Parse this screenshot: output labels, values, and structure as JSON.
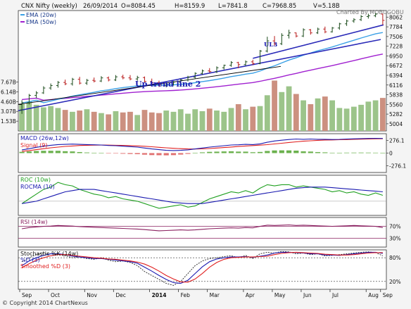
{
  "header": {
    "title": "CNX Nifty (weekly)",
    "date": "26/09/2014",
    "open": "O=8084.45",
    "high": "H=8159.9",
    "low": "L=7841.8",
    "close": "C=7968.85",
    "volume": "V=5.18B",
    "credit_top": "Charted By MOBUGOBU",
    "copyright": "© Copyright 2014 ChartNexus"
  },
  "colors": {
    "ema20": "#3aa0e6",
    "ema50": "#a020d0",
    "trend": "#2a2ab8",
    "candle_up": "#1a4a1a",
    "candle_down": "#b81818",
    "vol_up": "#9cc48a",
    "vol_down": "#cc9080",
    "macd": "#1a1ab0",
    "signal": "#e02020",
    "roc": "#20a020",
    "rocma": "#1a1ab0",
    "rsi": "#8a2060",
    "stoch_k": "#1a1ab0",
    "stoch_slow": "#e02020"
  },
  "chart_data": [
    {
      "panel": "price",
      "type": "candlestick",
      "legend": [
        "EMA (20w)",
        "EMA (50w)"
      ],
      "y_ticks": [
        "8062",
        "7784",
        "7506",
        "7228",
        "6950",
        "6672",
        "6394",
        "6116",
        "5838",
        "5560",
        "5282",
        "5004"
      ],
      "ylim": [
        4800,
        8250
      ],
      "x_ticks": [
        "Sep",
        "Oct",
        "Nov",
        "Dec",
        "2014",
        "Feb",
        "Mar",
        "Apr",
        "May",
        "Jun",
        "Jul",
        "Aug",
        "Sep"
      ],
      "annotations": [
        "Up trend line 2",
        "UL3"
      ],
      "candles": [
        [
          5400,
          5680,
          5290,
          5610
        ],
        [
          5610,
          5860,
          5560,
          5820
        ],
        [
          5820,
          5940,
          5740,
          5890
        ],
        [
          5890,
          6080,
          5860,
          6030
        ],
        [
          6030,
          6160,
          5980,
          6100
        ],
        [
          6100,
          6230,
          6040,
          6190
        ],
        [
          6190,
          6270,
          6110,
          6150
        ],
        [
          6150,
          6320,
          6100,
          6280
        ],
        [
          6280,
          6350,
          6130,
          6170
        ],
        [
          6170,
          6290,
          6120,
          6250
        ],
        [
          6250,
          6330,
          6190,
          6230
        ],
        [
          6230,
          6370,
          6200,
          6320
        ],
        [
          6320,
          6360,
          6220,
          6260
        ],
        [
          6260,
          6400,
          6230,
          6350
        ],
        [
          6350,
          6410,
          6280,
          6320
        ],
        [
          6320,
          6400,
          6250,
          6290
        ],
        [
          6290,
          6380,
          6240,
          6330
        ],
        [
          6330,
          6360,
          6190,
          6220
        ],
        [
          6220,
          6300,
          6140,
          6180
        ],
        [
          6180,
          6240,
          6060,
          6110
        ],
        [
          6110,
          6200,
          6050,
          6140
        ],
        [
          6140,
          6230,
          6100,
          6200
        ],
        [
          6200,
          6290,
          6150,
          6260
        ],
        [
          6260,
          6380,
          6220,
          6340
        ],
        [
          6340,
          6480,
          6300,
          6450
        ],
        [
          6450,
          6560,
          6410,
          6520
        ],
        [
          6520,
          6600,
          6470,
          6500
        ],
        [
          6500,
          6650,
          6460,
          6610
        ],
        [
          6610,
          6700,
          6560,
          6680
        ],
        [
          6680,
          6800,
          6640,
          6760
        ],
        [
          6760,
          6780,
          6600,
          6700
        ],
        [
          6700,
          6820,
          6670,
          6780
        ],
        [
          6780,
          6840,
          6690,
          6730
        ],
        [
          6730,
          7120,
          6710,
          7090
        ],
        [
          7090,
          7500,
          7050,
          7380
        ],
        [
          7380,
          7520,
          7250,
          7300
        ],
        [
          7300,
          7600,
          7260,
          7540
        ],
        [
          7540,
          7700,
          7450,
          7610
        ],
        [
          7610,
          7620,
          7480,
          7520
        ],
        [
          7520,
          7740,
          7490,
          7700
        ],
        [
          7700,
          7720,
          7560,
          7610
        ],
        [
          7610,
          7760,
          7580,
          7720
        ],
        [
          7720,
          7790,
          7600,
          7640
        ],
        [
          7640,
          7780,
          7620,
          7750
        ],
        [
          7750,
          7900,
          7700,
          7870
        ],
        [
          7870,
          7990,
          7810,
          7950
        ],
        [
          7950,
          8030,
          7900,
          7990
        ],
        [
          7990,
          8120,
          7950,
          8080
        ],
        [
          8080,
          8160,
          8020,
          8100
        ],
        [
          8100,
          8180,
          8060,
          8150
        ],
        [
          8150,
          8160,
          7840,
          7969
        ]
      ],
      "volume": {
        "y_ticks": [
          "7.67B",
          "6.14B",
          "4.60B",
          "3.07B",
          "1.53B"
        ],
        "ylim": [
          0,
          9.5
        ],
        "values": [
          4.2,
          4.6,
          4.1,
          3.7,
          3.9,
          3.6,
          3.3,
          3.0,
          3.2,
          3.4,
          3.0,
          2.8,
          2.6,
          3.1,
          2.9,
          3.0,
          2.5,
          3.3,
          2.9,
          2.8,
          3.2,
          3.0,
          3.4,
          2.7,
          3.4,
          3.1,
          3.5,
          3.2,
          3.0,
          3.6,
          4.2,
          3.4,
          3.8,
          3.9,
          5.6,
          7.9,
          6.1,
          7.0,
          5.8,
          4.8,
          4.2,
          5.1,
          5.4,
          4.8,
          3.6,
          3.5,
          3.8,
          4.1,
          4.6,
          4.8,
          5.18
        ]
      }
    },
    {
      "panel": "macd",
      "type": "line",
      "legend": [
        "MACD (26w,12w)",
        "Signal (9)"
      ],
      "y_ticks": [
        "276.1",
        "0",
        "-276.1"
      ],
      "ylim": [
        -420,
        420
      ],
      "series": [
        {
          "name": "MACD (26w,12w)",
          "values": [
            70,
            95,
            125,
            150,
            170,
            185,
            190,
            195,
            190,
            185,
            180,
            175,
            165,
            160,
            150,
            140,
            130,
            110,
            90,
            75,
            60,
            55,
            60,
            70,
            90,
            110,
            130,
            145,
            160,
            175,
            180,
            190,
            185,
            200,
            235,
            262,
            280,
            295,
            305,
            300,
            305,
            300,
            300,
            295,
            298,
            305,
            310,
            315,
            318,
            320,
            318
          ]
        },
        {
          "name": "Signal (9)",
          "values": [
            40,
            55,
            75,
            95,
            115,
            130,
            145,
            155,
            165,
            170,
            172,
            174,
            172,
            170,
            166,
            162,
            156,
            148,
            138,
            126,
            114,
            104,
            96,
            90,
            88,
            92,
            100,
            110,
            120,
            132,
            144,
            155,
            164,
            172,
            184,
            198,
            214,
            230,
            245,
            258,
            268,
            276,
            282,
            286,
            290,
            294,
            298,
            302,
            306,
            310,
            312
          ]
        }
      ]
    },
    {
      "panel": "roc",
      "type": "line",
      "legend": [
        "ROC (10w)",
        "ROCMA (10)"
      ],
      "ylim": [
        -12,
        22
      ],
      "series": [
        {
          "name": "ROC (10w)",
          "values": [
            -2,
            2,
            6,
            10,
            12,
            16,
            14,
            13,
            10,
            8,
            6,
            5,
            3,
            4,
            2,
            1,
            0,
            -2,
            -4,
            -6,
            -5,
            -4,
            -3,
            -5,
            -4,
            -1,
            2,
            4,
            6,
            8,
            7,
            9,
            7,
            11,
            14,
            13,
            14,
            14,
            12,
            13,
            12,
            11,
            10,
            8,
            9,
            7,
            8,
            6,
            5,
            7,
            5
          ]
        },
        {
          "name": "ROCMA (10)",
          "values": [
            -2,
            -1,
            0,
            2,
            4,
            6,
            8,
            9,
            10,
            10,
            10,
            9,
            8,
            7,
            6,
            5,
            4,
            3,
            2,
            1,
            0,
            -1,
            -1.5,
            -2,
            -2,
            -2,
            -1,
            0,
            1,
            2,
            3,
            4,
            5,
            6,
            7,
            8,
            9,
            10,
            11,
            11.5,
            12,
            12,
            12,
            11.5,
            11,
            10.5,
            10,
            9.5,
            9,
            8.5,
            8
          ]
        }
      ]
    },
    {
      "panel": "rsi",
      "type": "line",
      "legend": [
        "RSI (14w)"
      ],
      "y_ticks": [
        "70%",
        "30%"
      ],
      "ylim": [
        0,
        100
      ],
      "series": [
        {
          "name": "RSI (14w)",
          "values": [
            62,
            66,
            68,
            70,
            71,
            73,
            72,
            71,
            69,
            68,
            67,
            66,
            65,
            64,
            63,
            62,
            61,
            59,
            57,
            55,
            56,
            57,
            58,
            57,
            58,
            60,
            62,
            63,
            64,
            65,
            64,
            66,
            65,
            70,
            74,
            73,
            74,
            75,
            73,
            74,
            73,
            72,
            71,
            70,
            71,
            72,
            73,
            72,
            71,
            70,
            66
          ]
        }
      ]
    },
    {
      "panel": "stochastic",
      "type": "line",
      "legend": [
        "Stochastic %K (14w)",
        "%D (3)",
        "Smoothed %D (3)"
      ],
      "y_ticks": [
        "80%",
        "20%"
      ],
      "ylim": [
        0,
        100
      ],
      "series": [
        {
          "name": "Stochastic %K (14w)",
          "values": [
            70,
            80,
            88,
            92,
            90,
            88,
            85,
            80,
            82,
            78,
            76,
            80,
            74,
            70,
            72,
            68,
            60,
            45,
            35,
            25,
            15,
            10,
            20,
            40,
            60,
            72,
            78,
            80,
            83,
            85,
            80,
            86,
            78,
            90,
            94,
            92,
            96,
            95,
            90,
            92,
            88,
            90,
            85,
            86,
            88,
            90,
            92,
            94,
            95,
            93,
            85
          ]
        },
        {
          "name": "%D (3)",
          "values": [
            60,
            72,
            80,
            86,
            90,
            90,
            88,
            84,
            82,
            80,
            78,
            78,
            76,
            74,
            72,
            70,
            66,
            56,
            46,
            35,
            25,
            17,
            15,
            23,
            40,
            57,
            70,
            77,
            80,
            82,
            82,
            83,
            81,
            84,
            87,
            92,
            94,
            94,
            93,
            92,
            90,
            90,
            87,
            87,
            86,
            88,
            90,
            92,
            94,
            94,
            91
          ]
        },
        {
          "name": "Smoothed %D (3)",
          "values": [
            55,
            65,
            74,
            80,
            85,
            88,
            88,
            86,
            84,
            82,
            80,
            79,
            77,
            76,
            74,
            72,
            69,
            64,
            56,
            46,
            35,
            26,
            19,
            18,
            26,
            40,
            56,
            68,
            76,
            80,
            81,
            82,
            82,
            83,
            84,
            88,
            91,
            93,
            94,
            93,
            92,
            91,
            89,
            88,
            87,
            87,
            88,
            90,
            92,
            93,
            93
          ]
        }
      ]
    }
  ]
}
